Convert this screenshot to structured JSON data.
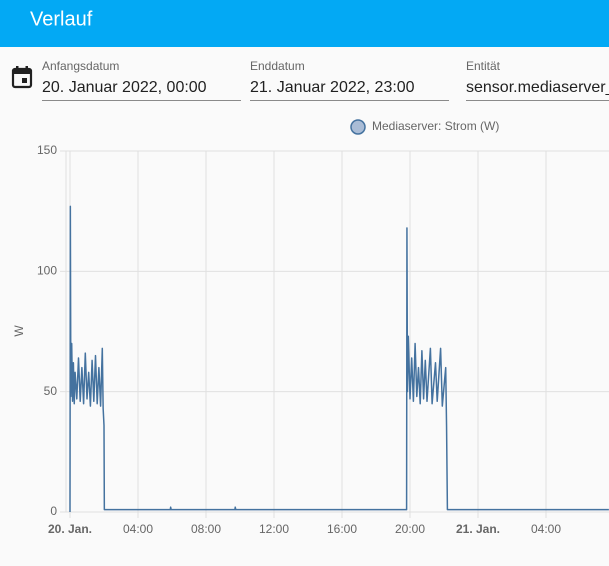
{
  "header": {
    "title": "Verlauf"
  },
  "form": {
    "fields": [
      {
        "label": "Anfangsdatum",
        "value": "20. Januar 2022, 00:00"
      },
      {
        "label": "Enddatum",
        "value": "21. Januar 2022, 23:00"
      },
      {
        "label": "Entität",
        "value": "sensor.mediaserver_"
      }
    ]
  },
  "chart_data": {
    "type": "line",
    "ylabel": "W",
    "x": [
      0,
      0.02,
      0.05,
      0.1,
      0.15,
      0.2,
      0.25,
      0.3,
      0.4,
      0.5,
      0.6,
      0.7,
      0.8,
      0.9,
      1.0,
      1.1,
      1.2,
      1.3,
      1.4,
      1.5,
      1.6,
      1.7,
      1.8,
      1.9,
      1.95,
      2.0,
      2.02,
      5.9,
      5.92,
      5.95,
      9.7,
      9.72,
      9.75,
      19.8,
      19.82,
      19.85,
      19.9,
      20.0,
      20.1,
      20.2,
      20.3,
      20.4,
      20.5,
      20.6,
      20.7,
      20.8,
      20.9,
      21.0,
      21.2,
      21.3,
      21.5,
      21.6,
      21.8,
      21.9,
      22.1,
      22.15,
      22.2,
      31.7
    ],
    "series": [
      {
        "name": "Mediaserver: Strom (W)",
        "color": "#44729f",
        "values": [
          0,
          127,
          48,
          70,
          46,
          62,
          45,
          58,
          47,
          64,
          46,
          60,
          45,
          66,
          47,
          58,
          44,
          63,
          46,
          65,
          45,
          60,
          44,
          68,
          43,
          36,
          1,
          1,
          2,
          1,
          1,
          2,
          1,
          1,
          118,
          50,
          73,
          47,
          64,
          46,
          70,
          48,
          60,
          45,
          67,
          47,
          63,
          46,
          68,
          45,
          62,
          46,
          68,
          44,
          60,
          36,
          1,
          1
        ]
      }
    ],
    "xlim": [
      0,
      31.7
    ],
    "xticks": [
      {
        "value": 0,
        "label": "20. Jan."
      },
      {
        "value": 4,
        "label": "04:00"
      },
      {
        "value": 8,
        "label": "08:00"
      },
      {
        "value": 12,
        "label": "12:00"
      },
      {
        "value": 16,
        "label": "16:00"
      },
      {
        "value": 20,
        "label": "20:00"
      },
      {
        "value": 24,
        "label": "21. Jan."
      },
      {
        "value": 28,
        "label": "04:00"
      }
    ],
    "ylim": [
      0,
      150
    ],
    "yticks": [
      0,
      50,
      100,
      150
    ],
    "grid": true
  }
}
